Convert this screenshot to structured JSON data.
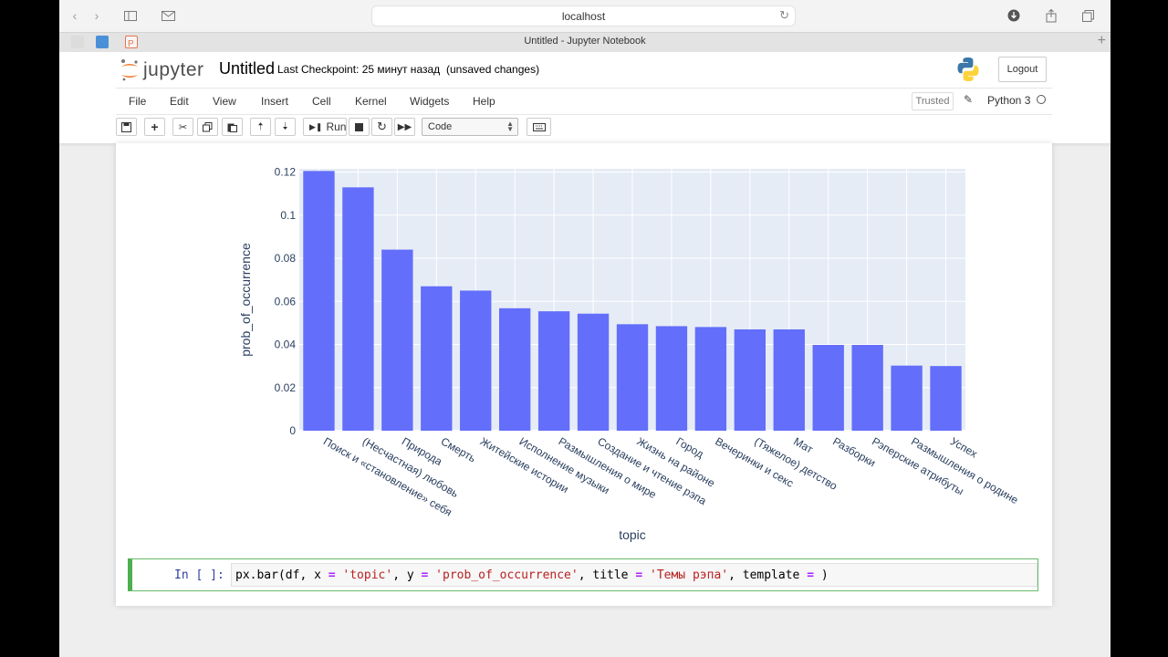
{
  "browser": {
    "url": "localhost",
    "tab_title": "Untitled - Jupyter Notebook"
  },
  "header": {
    "logo_text": "jupyter",
    "notebook_title": "Untitled",
    "checkpoint": "Last Checkpoint: 25 минут назад",
    "unsaved": "(unsaved changes)",
    "logout": "Logout"
  },
  "menu": {
    "items": [
      "File",
      "Edit",
      "View",
      "Insert",
      "Cell",
      "Kernel",
      "Widgets",
      "Help"
    ],
    "trusted": "Trusted",
    "kernel_name": "Python 3"
  },
  "toolbar": {
    "run_label": "Run",
    "cell_type": "Code"
  },
  "cell": {
    "prompt": "In [ ]:",
    "code": "px.bar(df, x = 'topic', y = 'prob_of_occurrence', title = 'Темы рэпа', template = )"
  },
  "chart_data": {
    "type": "bar",
    "title": "",
    "xlabel": "topic",
    "ylabel": "prob_of_occurrence",
    "ylim": [
      0,
      0.1215
    ],
    "yticks": [
      "0",
      "0.02",
      "0.04",
      "0.06",
      "0.08",
      "0.1",
      "0.12"
    ],
    "ytick_values": [
      0,
      0.02,
      0.04,
      0.06,
      0.08,
      0.1,
      0.12
    ],
    "grid": true,
    "bar_color": "#636efa",
    "plot_bg": "#e5ecf6",
    "categories": [
      "Поиск и «становление» себя",
      "(Несчастная) любовь",
      "Природа",
      "Смерть",
      "Житейские истории",
      "Исполнение музыки",
      "Размышления о мире",
      "Создание и чтение рэпа",
      "Жизнь на районе",
      "Город",
      "Вечеринки и секс",
      "(Тяжелое) детство",
      "Мат",
      "Разборки",
      "Рэперские атрибуты",
      "Размышления о родине",
      "Успех"
    ],
    "values": [
      0.1205,
      0.1129,
      0.084,
      0.067,
      0.065,
      0.0568,
      0.0554,
      0.0543,
      0.0494,
      0.0485,
      0.0481,
      0.047,
      0.047,
      0.0398,
      0.0398,
      0.0302,
      0.03
    ]
  }
}
